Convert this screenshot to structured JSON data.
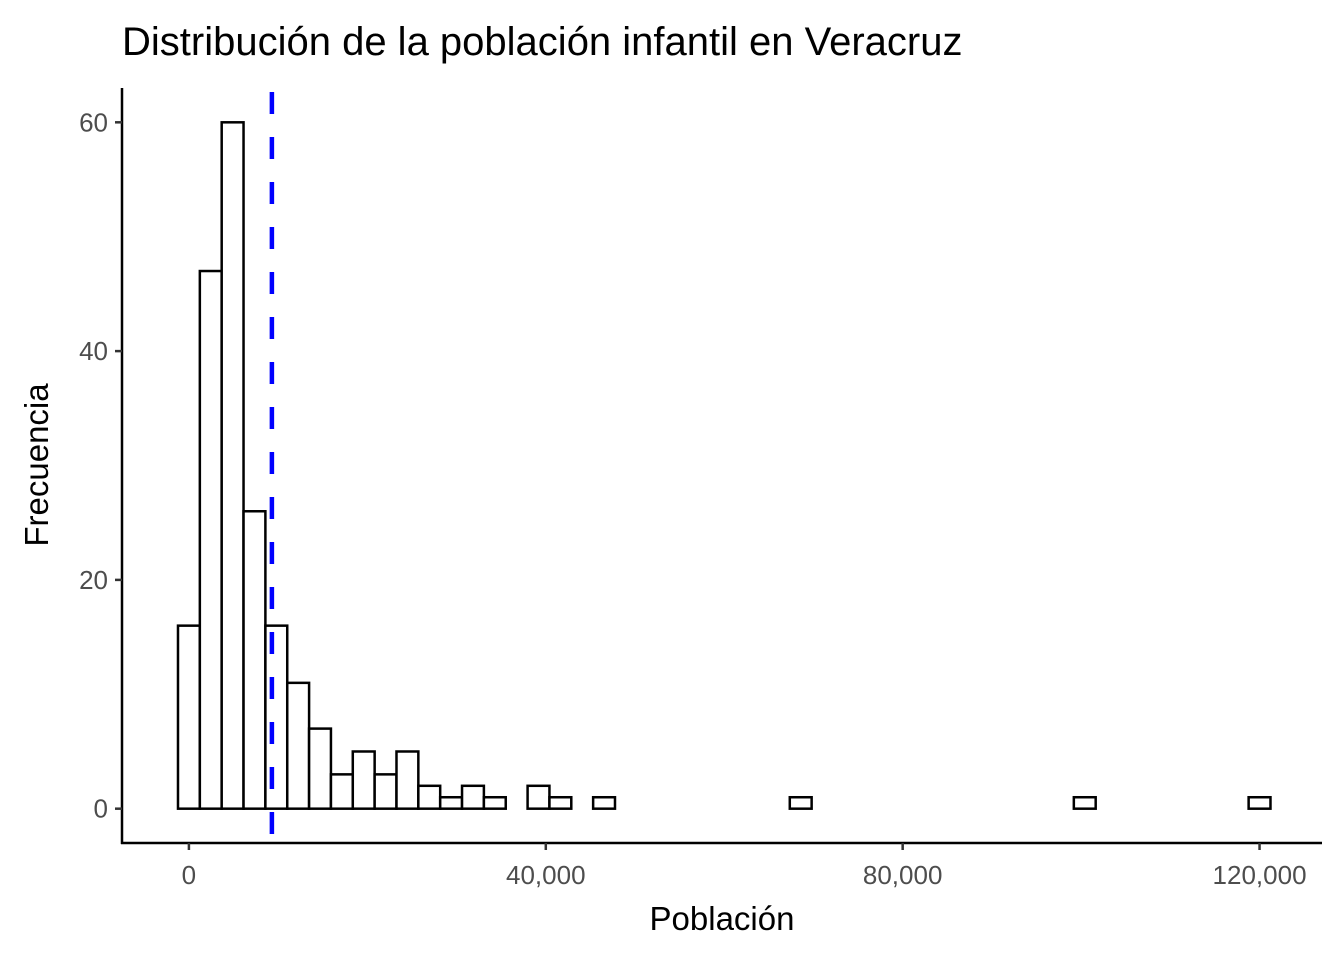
{
  "chart_data": {
    "type": "bar",
    "subtype": "histogram",
    "title": "Distribución de la población infantil en Veracruz",
    "xlabel": "Población",
    "ylabel": "Frecuencia",
    "binwidth": 2449,
    "bin_centers_start": 0,
    "counts": [
      16,
      47,
      60,
      26,
      16,
      11,
      7,
      3,
      5,
      3,
      5,
      2,
      1,
      2,
      1,
      0,
      2,
      1,
      0,
      1,
      0,
      0,
      0,
      0,
      0,
      0,
      0,
      0,
      1,
      0,
      0,
      0,
      0,
      0,
      0,
      0,
      0,
      0,
      0,
      0,
      0,
      1,
      0,
      0,
      0,
      0,
      0,
      0,
      0,
      1
    ],
    "xlim": [
      -7500,
      127000
    ],
    "ylim": [
      -3,
      63
    ],
    "xticks": [
      0,
      40000,
      80000,
      120000
    ],
    "xtick_labels": [
      "0",
      "40,000",
      "80,000",
      "120,000"
    ],
    "yticks": [
      0,
      20,
      40,
      60
    ],
    "ytick_labels": [
      "0",
      "20",
      "40",
      "60"
    ],
    "mean_line": {
      "value": 9300,
      "color": "#0000FF",
      "style": "dashed"
    },
    "bar_fill": "#FFFFFF",
    "bar_outline": "#000000",
    "grid": false
  }
}
